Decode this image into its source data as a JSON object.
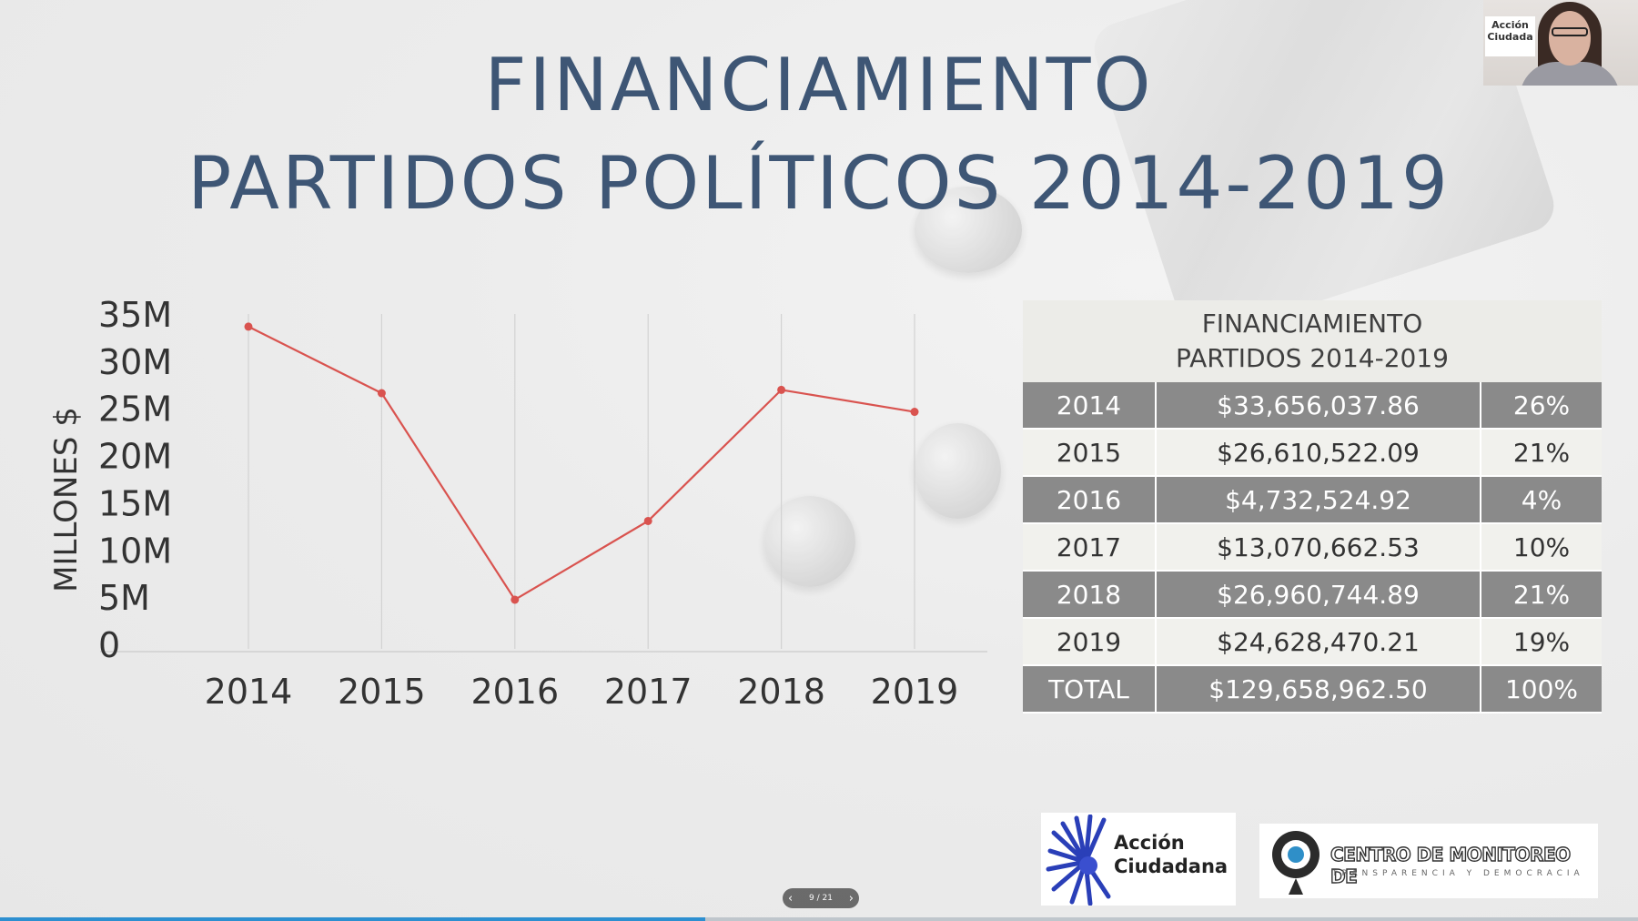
{
  "slide": {
    "title_line1": "FINANCIAMIENTO",
    "title_line2": "PARTIDOS POLÍTICOS 2014-2019"
  },
  "chart_data": {
    "type": "line",
    "x": [
      "2014",
      "2015",
      "2016",
      "2017",
      "2018",
      "2019"
    ],
    "values": [
      33.66,
      26.61,
      4.73,
      13.07,
      26.96,
      24.63
    ],
    "ylabel": "MILLONES $",
    "ytick_labels": [
      "0",
      "5M",
      "10M",
      "15M",
      "20M",
      "25M",
      "30M",
      "35M"
    ],
    "ylim": [
      0,
      35
    ],
    "grid": "vertical",
    "line_color": "#d9534f"
  },
  "table": {
    "header_line1": "FINANCIAMIENTO",
    "header_line2": "PARTIDOS 2014-2019",
    "rows": [
      {
        "year": "2014",
        "amount": "$33,656,037.86",
        "pct": "26%"
      },
      {
        "year": "2015",
        "amount": "$26,610,522.09",
        "pct": "21%"
      },
      {
        "year": "2016",
        "amount": "$4,732,524.92",
        "pct": "4%"
      },
      {
        "year": "2017",
        "amount": "$13,070,662.53",
        "pct": "10%"
      },
      {
        "year": "2018",
        "amount": "$26,960,744.89",
        "pct": "21%"
      },
      {
        "year": "2019",
        "amount": "$24,628,470.21",
        "pct": "19%"
      },
      {
        "year": "TOTAL",
        "amount": "$129,658,962.50",
        "pct": "100%"
      }
    ]
  },
  "logos": {
    "accion_line1": "Acción",
    "accion_line2": "Ciudadana",
    "centro_title": "CENTRO DE MONITOREO DE",
    "centro_subtitle": "TRANSPARENCIA Y DEMOCRACIA"
  },
  "webcam": {
    "brand_line1": "Acción",
    "brand_line2": "Ciudada"
  },
  "navigator": {
    "page_indicator": "9 / 21",
    "prev_icon": "chevron-left-icon",
    "next_icon": "chevron-right-icon"
  },
  "colors": {
    "title": "#3e5675",
    "table_dark": "#8a8a8a",
    "table_light": "#f1f1ed",
    "line": "#d9534f",
    "progress": "#2d8fd0"
  }
}
